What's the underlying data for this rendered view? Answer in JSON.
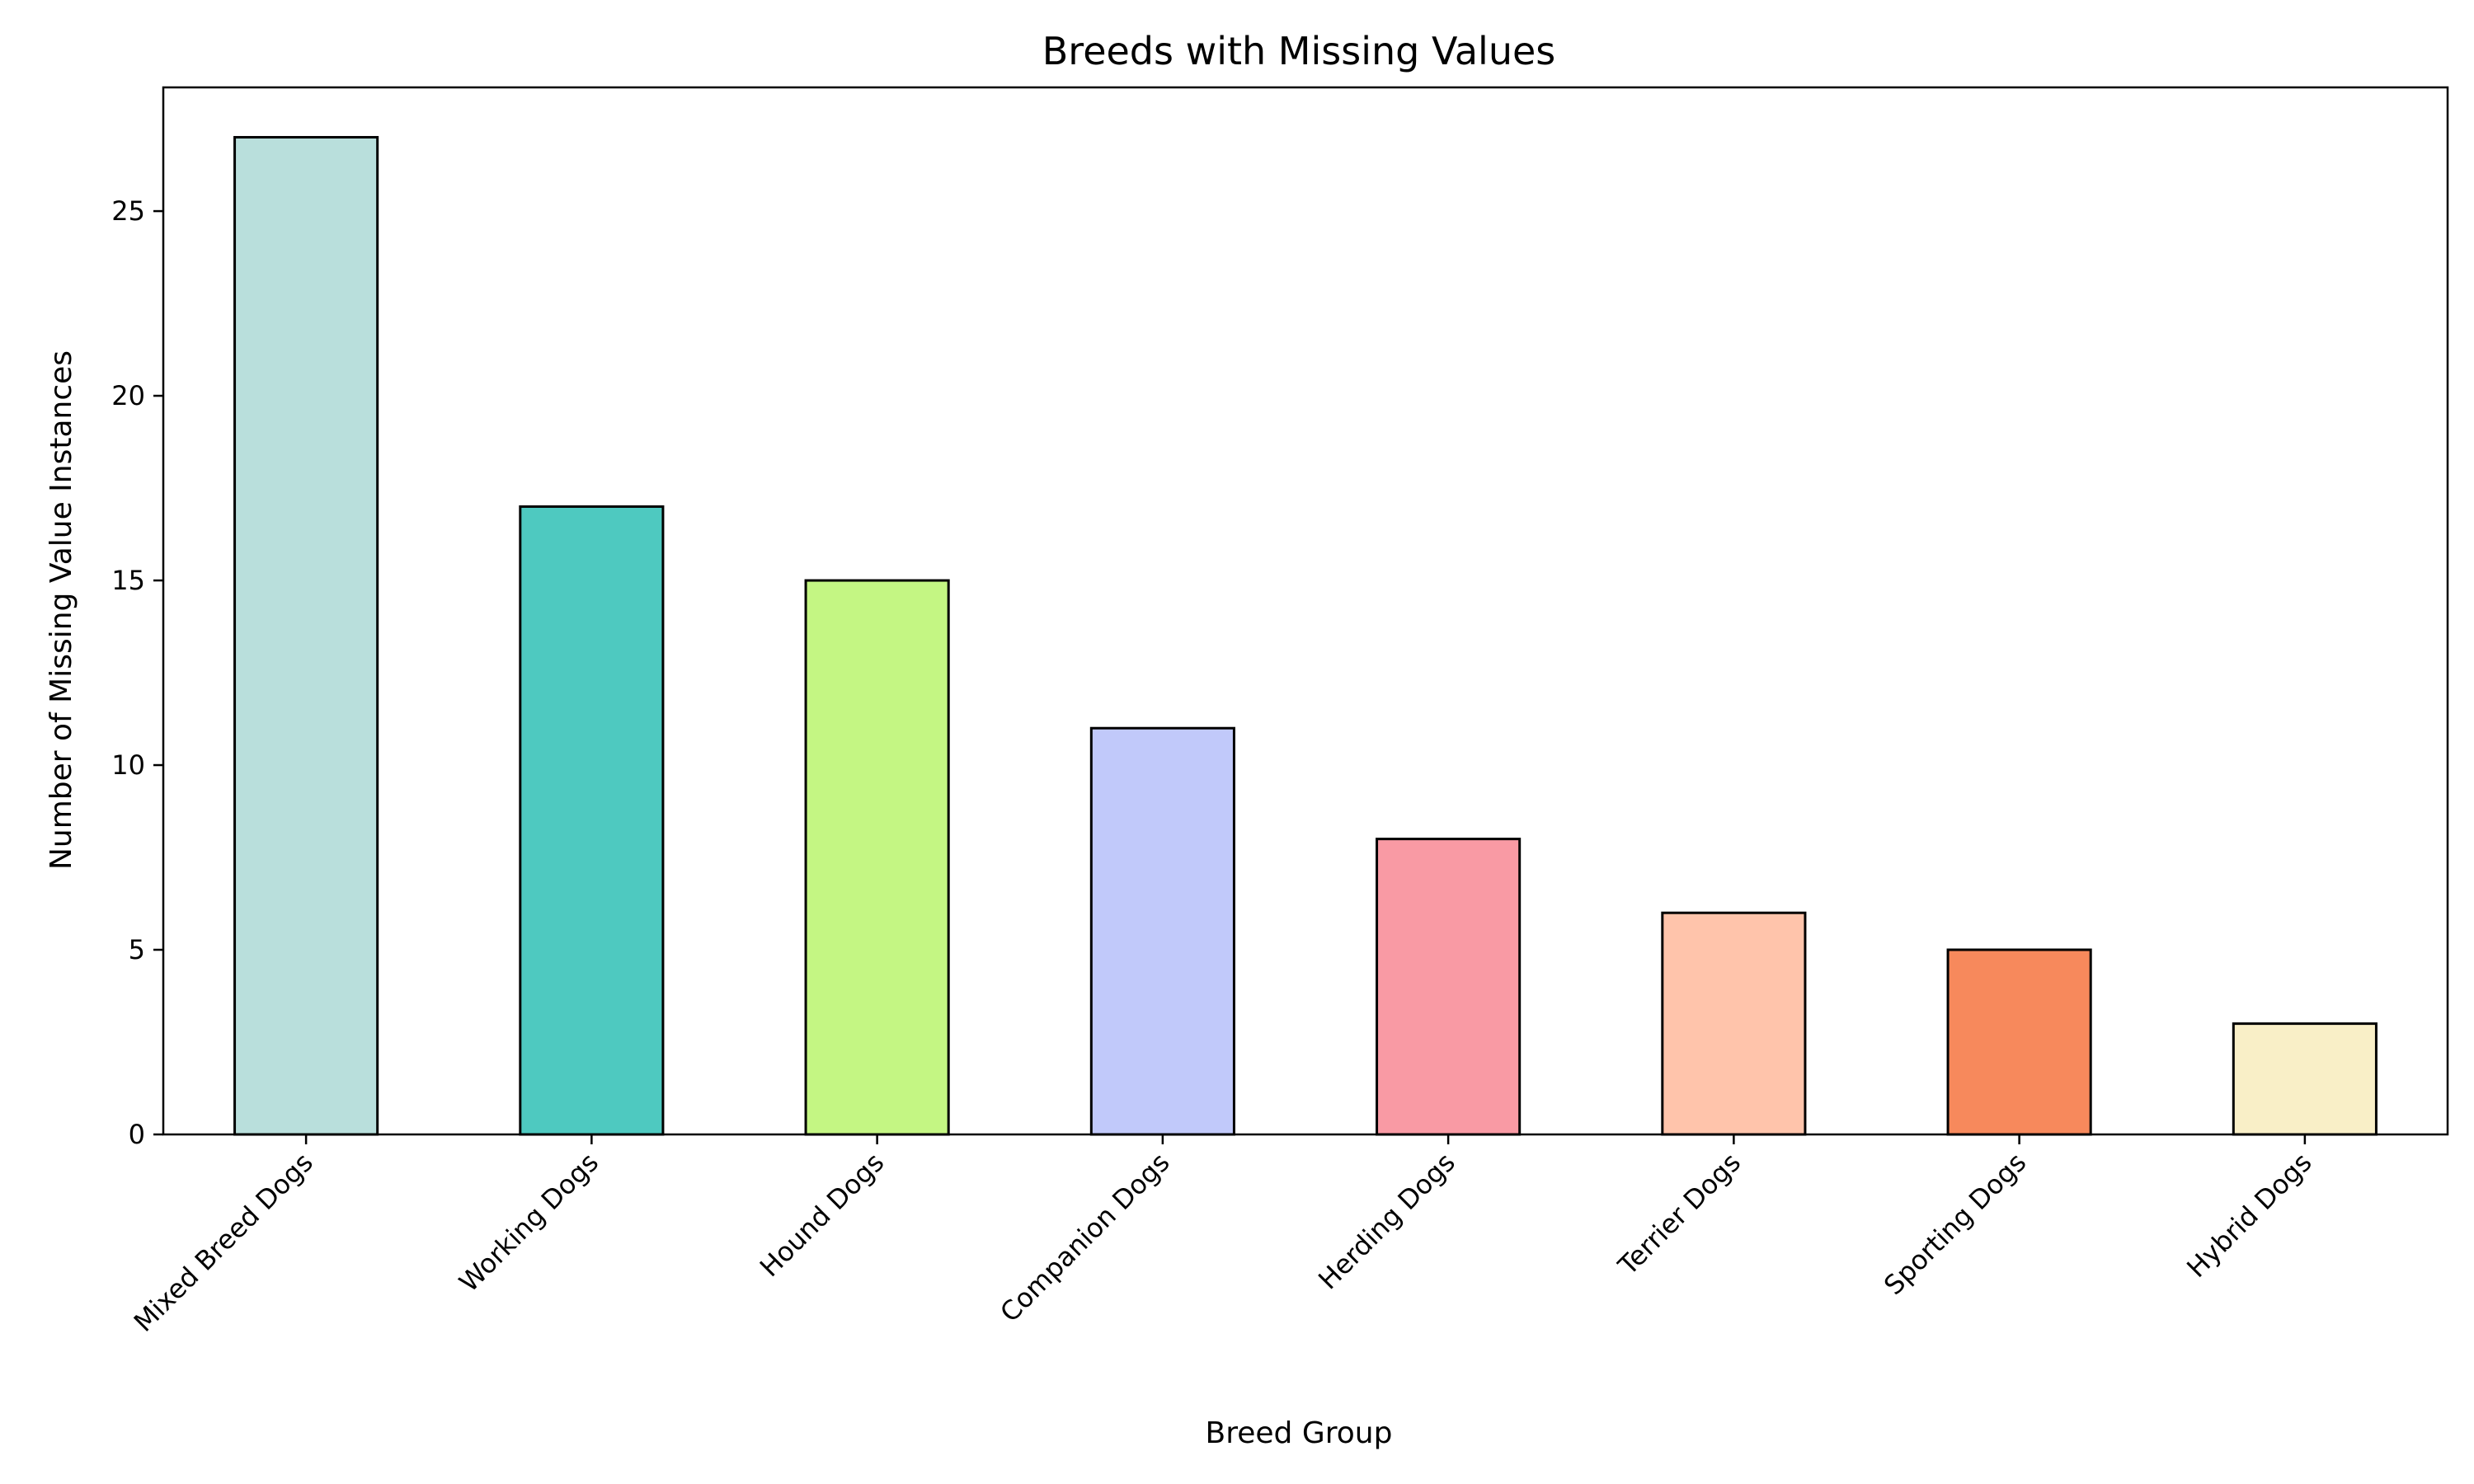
{
  "chart_data": {
    "type": "bar",
    "title": "Breeds with Missing Values",
    "xlabel": "Breed Group",
    "ylabel": "Number of Missing Value Instances",
    "categories": [
      "Mixed Breed Dogs",
      "Working Dogs",
      "Hound Dogs",
      "Companion Dogs",
      "Herding Dogs",
      "Terrier Dogs",
      "Sporting Dogs",
      "Hybrid Dogs"
    ],
    "values": [
      27,
      17,
      15,
      11,
      8,
      6,
      5,
      3
    ],
    "colors": [
      "#b9dfdc",
      "#4ec9c0",
      "#c4f683",
      "#c1c9fa",
      "#f99aa4",
      "#ffc4ab",
      "#f7895c",
      "#f9efc7"
    ],
    "edge_color": "#000000",
    "yticks": [
      0,
      5,
      10,
      15,
      20,
      25
    ],
    "ylim": [
      0,
      28.35
    ],
    "grid": false,
    "legend": "none"
  }
}
